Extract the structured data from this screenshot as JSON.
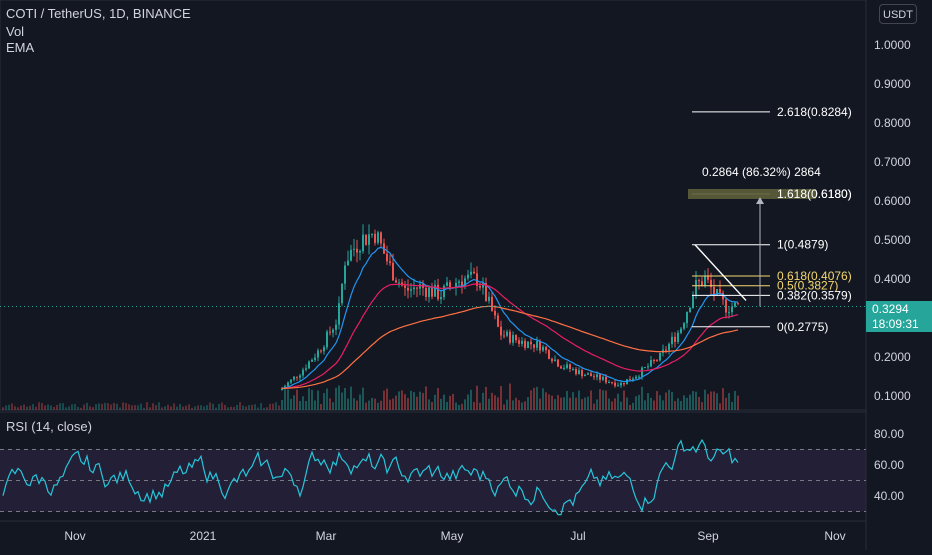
{
  "legend": {
    "symbol": "COTI / TetherUS, 1D, BINANCE",
    "vol": "Vol",
    "ema": "EMA",
    "rsi": "RSI (14, close)"
  },
  "currency_button": "USDT",
  "price_axis": [
    "1.0000",
    "0.9000",
    "0.8000",
    "0.7000",
    "0.6000",
    "0.5000",
    "0.4000",
    "0.2000",
    "0.1000"
  ],
  "rsi_axis": [
    "80.00",
    "60.00",
    "40.00"
  ],
  "time_axis": [
    "Nov",
    "2021",
    "Mar",
    "May",
    "Jul",
    "Sep",
    "Nov"
  ],
  "current_price": {
    "price": "0.3294",
    "countdown": "18:09:31",
    "color": "#26a69a"
  },
  "fib": {
    "levels": [
      {
        "label": "2.618(0.8284)",
        "price": 0.8284,
        "color": "#ffffff"
      },
      {
        "label": "1.618(0.6180)",
        "price": 0.618,
        "color": "#ffffff"
      },
      {
        "label": "1(0.4879)",
        "price": 0.4879,
        "color": "#ffffff"
      },
      {
        "label": "0.618(0.4076)",
        "price": 0.4076,
        "color": "#f5d76e"
      },
      {
        "label": "0.5(0.3827)",
        "price": 0.3827,
        "color": "#f5d76e"
      },
      {
        "label": "0.382(0.3579)",
        "price": 0.3579,
        "color": "#ffffff"
      },
      {
        "label": "0(0.2775)",
        "price": 0.2775,
        "color": "#ffffff"
      }
    ],
    "measure_label": "0.2864 (86.32%) 2864"
  },
  "colors": {
    "background": "#131722",
    "up": "#26a69a",
    "down": "#ef5350",
    "ema_fast": "#2196f3",
    "ema_mid": "#e91e63",
    "ema_slow": "#ff7043",
    "rsi_line": "#26c6da",
    "rsi_band": "#2a2440"
  }
}
